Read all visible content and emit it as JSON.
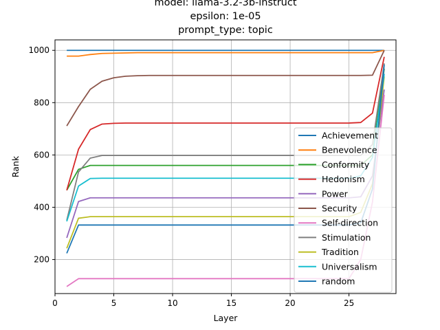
{
  "chart_data": {
    "type": "line",
    "title_lines": [
      "model: llama-3.2-3b-instruct",
      "epsilon: 1e-05",
      "prompt_type: topic"
    ],
    "xlabel": "Layer",
    "ylabel": "Rank",
    "xlim": [
      0,
      29
    ],
    "ylim": [
      70,
      1040
    ],
    "xticks": [
      0,
      5,
      10,
      15,
      20,
      25
    ],
    "yticks": [
      200,
      400,
      600,
      800,
      1000
    ],
    "grid": true,
    "legend_position": "lower-right",
    "x": [
      1,
      2,
      3,
      4,
      5,
      6,
      7,
      8,
      9,
      10,
      11,
      12,
      13,
      14,
      15,
      16,
      17,
      18,
      19,
      20,
      21,
      22,
      23,
      24,
      25,
      26,
      27,
      28
    ],
    "series": [
      {
        "name": "Achievement",
        "color": "#1f77b4",
        "values": [
          1000,
          1000,
          1000,
          1000,
          1000,
          1000,
          1000,
          1000,
          1000,
          1000,
          1000,
          1000,
          1000,
          1000,
          1000,
          1000,
          1000,
          1000,
          1000,
          1000,
          1000,
          1000,
          1000,
          1000,
          1000,
          1000,
          1000,
          1000
        ]
      },
      {
        "name": "Benevolence",
        "color": "#ff7f0e",
        "values": [
          978,
          978,
          984,
          988,
          989,
          990,
          991,
          991,
          991,
          991,
          991,
          991,
          991,
          991,
          991,
          991,
          991,
          991,
          991,
          991,
          991,
          991,
          991,
          991,
          991,
          991,
          991,
          1000
        ]
      },
      {
        "name": "Conformity",
        "color": "#2ca02c",
        "values": [
          465,
          545,
          560,
          560,
          560,
          560,
          560,
          560,
          560,
          560,
          560,
          560,
          560,
          560,
          560,
          560,
          560,
          560,
          560,
          560,
          560,
          560,
          560,
          560,
          560,
          560,
          600,
          930
        ]
      },
      {
        "name": "Hedonism",
        "color": "#d62728",
        "values": [
          465,
          622,
          697,
          718,
          721,
          722,
          722,
          722,
          722,
          722,
          722,
          722,
          722,
          722,
          722,
          722,
          722,
          722,
          722,
          722,
          722,
          722,
          722,
          722,
          722,
          724,
          760,
          975
        ]
      },
      {
        "name": "Power",
        "color": "#9467bd",
        "values": [
          283,
          422,
          436,
          436,
          436,
          436,
          436,
          436,
          436,
          436,
          436,
          436,
          436,
          436,
          436,
          436,
          436,
          436,
          436,
          436,
          436,
          436,
          436,
          436,
          436,
          440,
          520,
          850
        ]
      },
      {
        "name": "Security",
        "color": "#8c564b",
        "values": [
          711,
          785,
          851,
          882,
          895,
          901,
          903,
          904,
          904,
          904,
          904,
          904,
          904,
          904,
          904,
          904,
          904,
          904,
          904,
          904,
          904,
          904,
          904,
          904,
          904,
          904,
          905,
          1000
        ]
      },
      {
        "name": "Self-direction",
        "color": "#e377c2",
        "values": [
          97,
          127,
          127,
          127,
          127,
          127,
          127,
          127,
          127,
          127,
          127,
          127,
          127,
          127,
          127,
          127,
          127,
          127,
          127,
          127,
          127,
          127,
          127,
          127,
          127,
          200,
          420,
          830
        ]
      },
      {
        "name": "Stimulation",
        "color": "#7f7f7f",
        "values": [
          350,
          535,
          588,
          598,
          598,
          598,
          598,
          598,
          598,
          598,
          598,
          598,
          598,
          598,
          598,
          598,
          598,
          598,
          598,
          598,
          598,
          598,
          598,
          598,
          598,
          598,
          640,
          950
        ]
      },
      {
        "name": "Tradition",
        "color": "#bcbd22",
        "values": [
          243,
          358,
          364,
          364,
          364,
          364,
          364,
          364,
          364,
          364,
          364,
          364,
          364,
          364,
          364,
          364,
          364,
          364,
          364,
          364,
          364,
          364,
          364,
          364,
          364,
          380,
          490,
          900
        ]
      },
      {
        "name": "Universalism",
        "color": "#17becf",
        "values": [
          346,
          481,
          510,
          511,
          511,
          511,
          511,
          511,
          511,
          511,
          511,
          511,
          511,
          511,
          511,
          511,
          511,
          511,
          511,
          511,
          511,
          511,
          511,
          511,
          511,
          520,
          590,
          910
        ]
      },
      {
        "name": "random",
        "color": "#1f77b4",
        "values": [
          224,
          332,
          332,
          332,
          332,
          332,
          332,
          332,
          332,
          332,
          332,
          332,
          332,
          332,
          332,
          332,
          332,
          332,
          332,
          332,
          332,
          332,
          332,
          332,
          332,
          340,
          470,
          945
        ]
      }
    ]
  }
}
